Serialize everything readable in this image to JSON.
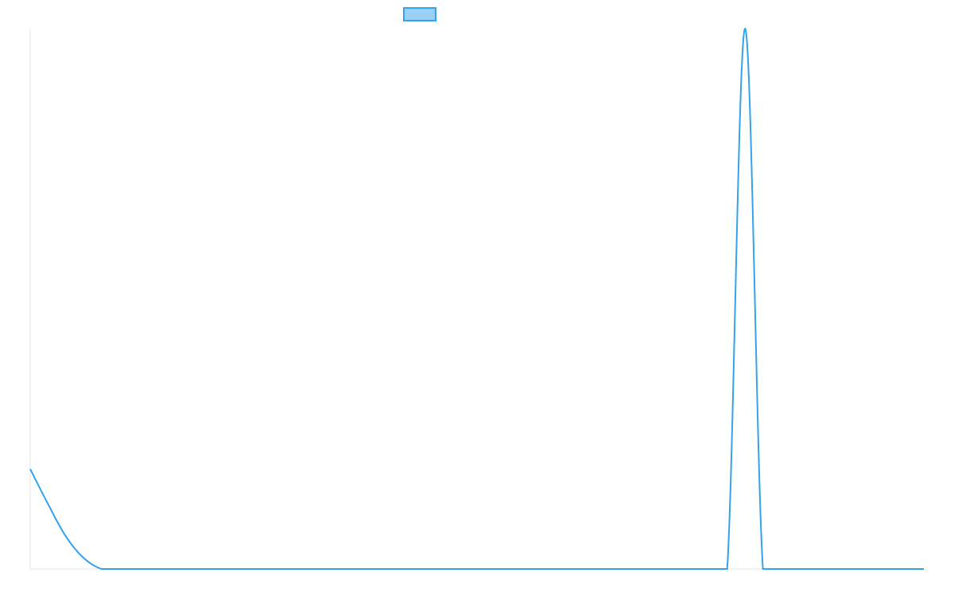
{
  "chart_data": {
    "type": "line",
    "title": "",
    "xlabel": "",
    "ylabel": "",
    "legend": {
      "placement": "top-center",
      "label": ""
    },
    "grid": false,
    "x": [
      0,
      1,
      2,
      3,
      4,
      5,
      6,
      7,
      8,
      9,
      10,
      20,
      30,
      38,
      39,
      40,
      41,
      42,
      43,
      44,
      50
    ],
    "xlim": [
      0,
      50
    ],
    "ylim": [
      0,
      100
    ],
    "series": [
      {
        "values": [
          18.5,
          12.0,
          6.0,
          2.0,
          0,
          0,
          0,
          0,
          0,
          0,
          0,
          0,
          0,
          0,
          0,
          100,
          0,
          0,
          0,
          0,
          0
        ],
        "color": "#36a2eb",
        "fill": "#9ad0f5"
      }
    ]
  }
}
